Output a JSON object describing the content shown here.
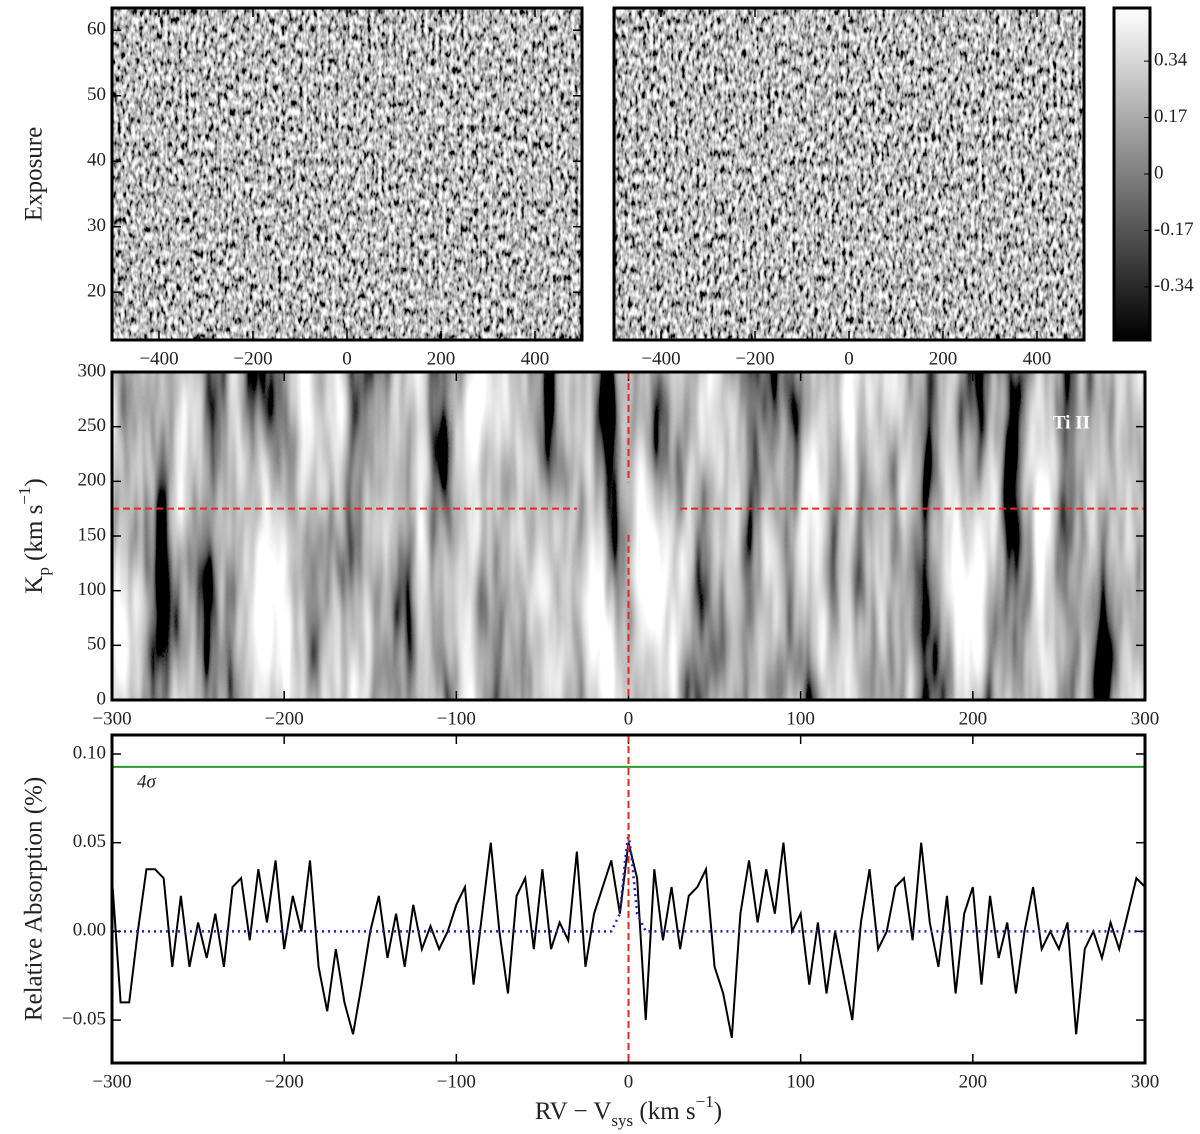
{
  "chart_data": [
    {
      "type": "heatmap",
      "ylabel": "Exposure",
      "xlim": [
        -500,
        500
      ],
      "ylim": [
        12.7,
        63.4
      ],
      "xticks": [
        {
          "value": -400,
          "label": "−400"
        },
        {
          "value": -200,
          "label": "−200"
        },
        0,
        200,
        400
      ],
      "yticks": [
        20,
        30,
        40,
        50,
        60
      ]
    },
    {
      "type": "heatmap",
      "xlim": [
        -500,
        500
      ],
      "ylim": [
        12.7,
        63.4
      ],
      "xticks": [
        {
          "value": -400,
          "label": "−400"
        },
        {
          "value": -200,
          "label": "−200"
        },
        0,
        200,
        400
      ]
    },
    {
      "type": "colorbar",
      "ylim": [
        -0.5,
        0.5
      ],
      "yticks": [
        -0.34,
        -0.17,
        0,
        0.17,
        0.34
      ]
    },
    {
      "type": "heatmap",
      "ylabel": [
        "K",
        "p",
        " (km s",
        "−1",
        ")"
      ],
      "annotation": "Ti II",
      "xlim": [
        -300,
        300
      ],
      "ylim": [
        0,
        300
      ],
      "xticks": [
        {
          "value": -300,
          "label": "−300"
        },
        {
          "value": -200,
          "label": "−200"
        },
        {
          "value": -100,
          "label": "−100"
        },
        0,
        100,
        200,
        300
      ],
      "yticks": [
        0,
        50,
        100,
        150,
        200,
        250,
        300
      ],
      "vline": 0,
      "hline": 175,
      "marker_color": "#e8271f"
    },
    {
      "type": "line",
      "ylabel": "Relative Absorption (%)",
      "xlabel": [
        "RV − V",
        "sys",
        " (km s",
        "−1",
        ")"
      ],
      "xlim": [
        -300,
        300
      ],
      "ylim": [
        -0.0742,
        0.1107
      ],
      "xticks": [
        {
          "value": -300,
          "label": "−300"
        },
        {
          "value": -200,
          "label": "−200"
        },
        {
          "value": -100,
          "label": "−100"
        },
        0,
        100,
        200,
        300
      ],
      "yticks": [
        {
          "value": -0.05,
          "label": "−0.05"
        },
        {
          "value": 0,
          "label": "0.00"
        },
        {
          "value": 0.05,
          "label": "0.05"
        },
        {
          "value": 0.1,
          "label": "0.10"
        }
      ],
      "vline": 0,
      "marker_color": "#e8271f",
      "threshold": {
        "value": 0.0927,
        "label": "4σ",
        "color": "#2a9a2a"
      },
      "series": [
        {
          "color": "#000000",
          "style": "solid",
          "x": [
            -300,
            -295,
            -290,
            -285,
            -280,
            -275,
            -270,
            -265,
            -260,
            -255,
            -250,
            -245,
            -240,
            -235,
            -230,
            -225,
            -220,
            -215,
            -210,
            -205,
            -200,
            -195,
            -190,
            -185,
            -180,
            -175,
            -170,
            -165,
            -160,
            -155,
            -150,
            -145,
            -140,
            -135,
            -130,
            -125,
            -120,
            -115,
            -110,
            -105,
            -100,
            -95,
            -90,
            -85,
            -80,
            -75,
            -70,
            -65,
            -60,
            -55,
            -50,
            -45,
            -40,
            -35,
            -30,
            -25,
            -20,
            -15,
            -10,
            -5,
            0,
            5,
            10,
            15,
            20,
            25,
            30,
            35,
            40,
            45,
            50,
            55,
            60,
            65,
            70,
            75,
            80,
            85,
            90,
            95,
            100,
            105,
            110,
            115,
            120,
            125,
            130,
            135,
            140,
            145,
            150,
            155,
            160,
            165,
            170,
            175,
            180,
            185,
            190,
            195,
            200,
            205,
            210,
            215,
            220,
            225,
            230,
            235,
            240,
            245,
            250,
            255,
            260,
            265,
            270,
            275,
            280,
            285,
            290,
            295,
            300
          ],
          "values": [
            0.03,
            -0.04,
            -0.04,
            0.0,
            0.035,
            0.035,
            0.03,
            -0.02,
            0.02,
            -0.02,
            0.005,
            -0.015,
            0.01,
            -0.02,
            0.025,
            0.03,
            -0.005,
            0.035,
            0.005,
            0.04,
            -0.01,
            0.02,
            0.0,
            0.04,
            -0.02,
            -0.045,
            -0.01,
            -0.04,
            -0.058,
            -0.03,
            0.0,
            0.02,
            -0.015,
            0.01,
            -0.02,
            0.015,
            -0.01,
            0.003,
            -0.01,
            0.0,
            0.015,
            0.025,
            -0.03,
            0.01,
            0.05,
            0.0,
            -0.035,
            0.02,
            0.03,
            -0.01,
            0.035,
            -0.01,
            0.005,
            -0.005,
            0.045,
            -0.02,
            0.01,
            0.025,
            0.04,
            0.01,
            0.05,
            0.03,
            -0.05,
            0.035,
            -0.005,
            0.025,
            -0.01,
            0.02,
            0.025,
            0.035,
            -0.02,
            -0.035,
            -0.06,
            0.01,
            0.04,
            0.005,
            0.035,
            0.01,
            0.05,
            0.0,
            0.01,
            -0.03,
            0.005,
            -0.035,
            0.0,
            -0.025,
            -0.05,
            0.005,
            0.035,
            -0.01,
            0.0,
            0.025,
            0.03,
            -0.005,
            0.05,
            0.005,
            -0.02,
            0.02,
            -0.035,
            0.01,
            0.025,
            -0.03,
            0.02,
            -0.015,
            0.005,
            -0.035,
            0.0,
            0.025,
            -0.01,
            0.0,
            -0.01,
            0.005,
            -0.058,
            -0.01,
            0.0,
            -0.015,
            0.005,
            -0.01,
            0.01,
            0.03,
            0.025
          ]
        },
        {
          "color": "#1f1fd6",
          "style": "dotted",
          "x": [
            -300,
            -10,
            -5,
            -2,
            0,
            2,
            5,
            10,
            300
          ],
          "values": [
            0,
            0,
            0.01,
            0.04,
            0.055,
            0.04,
            0.01,
            0,
            0
          ]
        }
      ]
    }
  ]
}
